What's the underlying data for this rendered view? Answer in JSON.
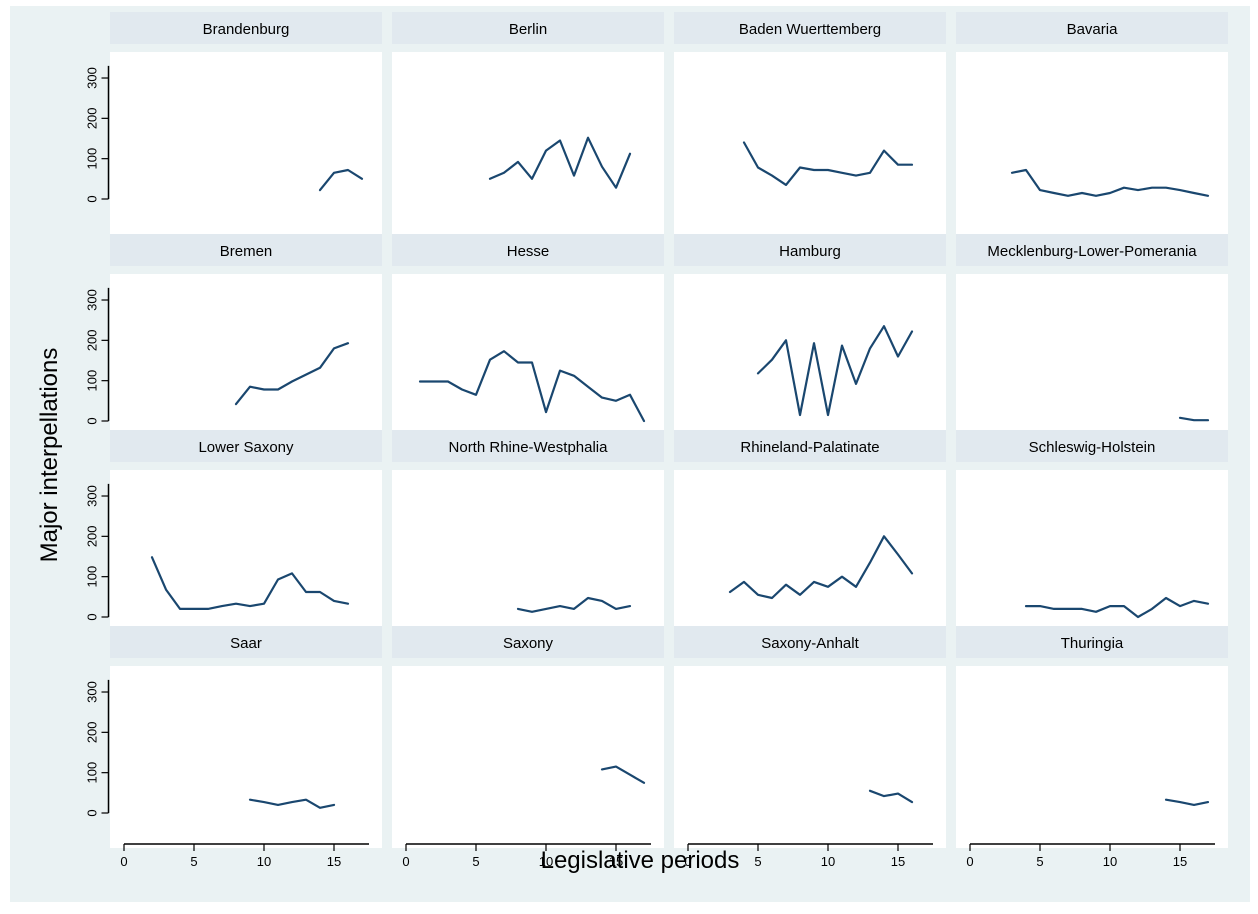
{
  "chart_data": {
    "type": "line",
    "xlabel": "Legislative periods",
    "ylabel": "Major interpellations",
    "xlim": [
      0,
      17.5
    ],
    "ylim": [
      0,
      330
    ],
    "x_ticks": [
      0,
      5,
      10,
      15
    ],
    "y_ticks": [
      0,
      100,
      200,
      300
    ],
    "grid": false,
    "line_color": "#1a476f",
    "plot_background": "#ffffff",
    "strip_background": "#e1e9ef",
    "outer_background": "#eaf2f3",
    "panels": [
      {
        "name": "Brandenburg",
        "x": [
          14,
          15,
          16,
          17
        ],
        "y": [
          22,
          65,
          72,
          50
        ]
      },
      {
        "name": "Berlin",
        "x": [
          6,
          7,
          8,
          9,
          10,
          11,
          12,
          13,
          14,
          15,
          16
        ],
        "y": [
          50,
          65,
          92,
          50,
          120,
          145,
          58,
          152,
          80,
          28,
          112
        ]
      },
      {
        "name": "Baden Wuerttemberg",
        "x": [
          4,
          5,
          6,
          7,
          8,
          9,
          10,
          11,
          12,
          13,
          14,
          15,
          16
        ],
        "y": [
          140,
          78,
          58,
          35,
          78,
          72,
          72,
          65,
          58,
          65,
          120,
          85,
          85
        ]
      },
      {
        "name": "Bavaria",
        "x": [
          3,
          4,
          5,
          6,
          7,
          8,
          9,
          10,
          11,
          12,
          13,
          14,
          15,
          16,
          17
        ],
        "y": [
          65,
          72,
          22,
          15,
          8,
          15,
          8,
          15,
          28,
          22,
          28,
          28,
          22,
          15,
          8
        ]
      },
      {
        "name": "Bremen",
        "x": [
          8,
          9,
          10,
          11,
          12,
          13,
          14,
          15,
          16
        ],
        "y": [
          42,
          85,
          78,
          78,
          98,
          115,
          132,
          180,
          193
        ]
      },
      {
        "name": "Hesse",
        "x": [
          1,
          2,
          3,
          4,
          5,
          6,
          7,
          8,
          9,
          10,
          11,
          12,
          13,
          14,
          15,
          16,
          17
        ],
        "y": [
          98,
          98,
          98,
          78,
          65,
          152,
          173,
          145,
          145,
          22,
          125,
          112,
          85,
          58,
          50,
          65,
          0
        ]
      },
      {
        "name": "Hamburg",
        "x": [
          5,
          6,
          7,
          8,
          9,
          10,
          11,
          12,
          13,
          14,
          15,
          16
        ],
        "y": [
          118,
          152,
          200,
          15,
          193,
          15,
          187,
          92,
          180,
          235,
          160,
          222
        ]
      },
      {
        "name": "Mecklenburg-Lower-Pomerania",
        "x": [
          15,
          16,
          17
        ],
        "y": [
          8,
          2,
          2
        ]
      },
      {
        "name": "Lower Saxony",
        "x": [
          2,
          3,
          4,
          5,
          6,
          7,
          8,
          9,
          10,
          11,
          12,
          13,
          14,
          15,
          16
        ],
        "y": [
          148,
          68,
          20,
          20,
          20,
          27,
          33,
          27,
          33,
          93,
          108,
          62,
          62,
          40,
          33
        ]
      },
      {
        "name": "North Rhine-Westphalia",
        "x": [
          8,
          9,
          10,
          11,
          12,
          13,
          14,
          15,
          16
        ],
        "y": [
          20,
          13,
          20,
          27,
          20,
          47,
          40,
          20,
          27
        ]
      },
      {
        "name": "Rhineland-Palatinate",
        "x": [
          3,
          4,
          5,
          6,
          7,
          8,
          9,
          10,
          11,
          12,
          13,
          14,
          15,
          16
        ],
        "y": [
          62,
          87,
          55,
          47,
          80,
          55,
          87,
          75,
          100,
          75,
          135,
          200,
          155,
          108
        ]
      },
      {
        "name": "Schleswig-Holstein",
        "x": [
          4,
          5,
          6,
          7,
          8,
          9,
          10,
          11,
          12,
          13,
          14,
          15,
          16,
          17
        ],
        "y": [
          27,
          27,
          20,
          20,
          20,
          13,
          27,
          27,
          0,
          20,
          47,
          27,
          40,
          33
        ]
      },
      {
        "name": "Saar",
        "x": [
          9,
          10,
          11,
          12,
          13,
          14,
          15
        ],
        "y": [
          33,
          27,
          20,
          27,
          33,
          13,
          20
        ]
      },
      {
        "name": "Saxony",
        "x": [
          14,
          15,
          16,
          17
        ],
        "y": [
          108,
          115,
          95,
          75
        ]
      },
      {
        "name": "Saxony-Anhalt",
        "x": [
          13,
          14,
          15,
          16
        ],
        "y": [
          55,
          42,
          48,
          27
        ]
      },
      {
        "name": "Thuringia",
        "x": [
          14,
          15,
          16,
          17
        ],
        "y": [
          33,
          27,
          20,
          27
        ]
      }
    ]
  }
}
